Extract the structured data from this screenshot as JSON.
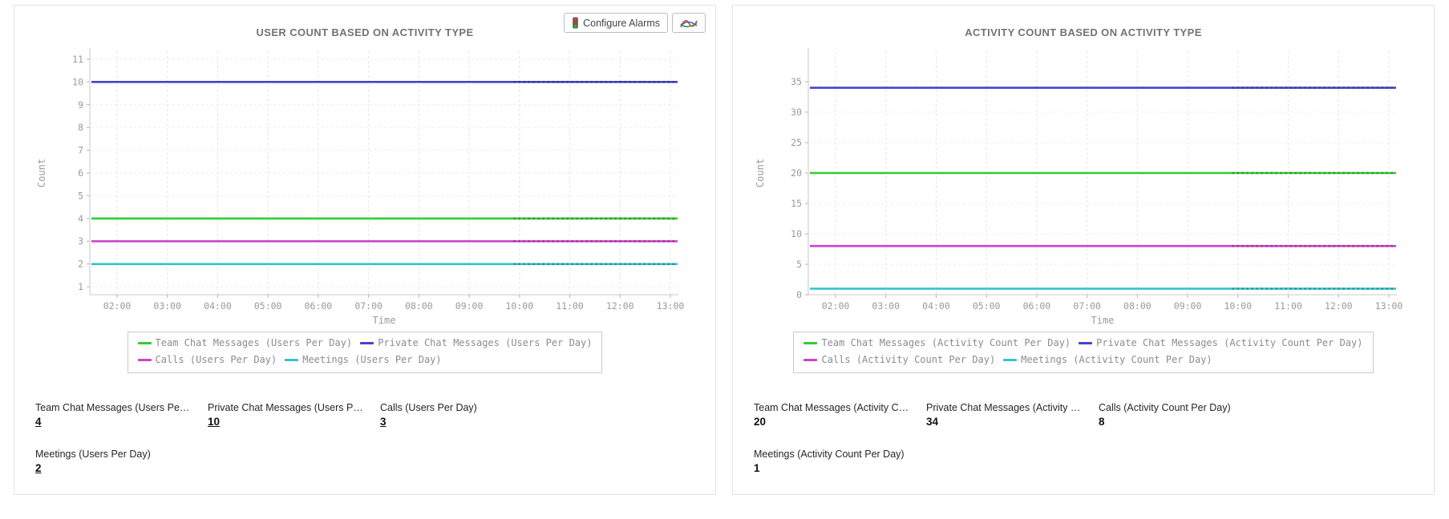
{
  "toolbar": {
    "configure_alarms": "Configure Alarms"
  },
  "chart_data": [
    {
      "type": "line",
      "title": "USER COUNT BASED ON ACTIVITY TYPE",
      "xlabel": "Time",
      "ylabel": "Count",
      "x": [
        "02:00",
        "03:00",
        "04:00",
        "05:00",
        "06:00",
        "07:00",
        "08:00",
        "09:00",
        "10:00",
        "11:00",
        "12:00",
        "13:00"
      ],
      "y_ticks": [
        1,
        2,
        3,
        4,
        5,
        6,
        7,
        8,
        9,
        10,
        11
      ],
      "ylim": [
        0.65,
        11.35
      ],
      "grid": true,
      "legend_position": "bottom",
      "series": [
        {
          "name": "Team Chat Messages (Users Per Day)",
          "color": "#33cc33",
          "values": [
            4,
            4,
            4,
            4,
            4,
            4,
            4,
            4,
            4,
            4,
            4,
            4
          ]
        },
        {
          "name": "Private Chat Messages (Users Per Day)",
          "color": "#4343ce",
          "values": [
            10,
            10,
            10,
            10,
            10,
            10,
            10,
            10,
            10,
            10,
            10,
            10
          ]
        },
        {
          "name": "Calls (Users Per Day)",
          "color": "#cb42cb",
          "values": [
            3,
            3,
            3,
            3,
            3,
            3,
            3,
            3,
            3,
            3,
            3,
            3
          ]
        },
        {
          "name": "Meetings (Users Per Day)",
          "color": "#35c4c8",
          "values": [
            2,
            2,
            2,
            2,
            2,
            2,
            2,
            2,
            2,
            2,
            2,
            2
          ]
        }
      ]
    },
    {
      "type": "line",
      "title": "ACTIVITY COUNT BASED ON ACTIVITY TYPE",
      "xlabel": "Time",
      "ylabel": "Count",
      "x": [
        "02:00",
        "03:00",
        "04:00",
        "05:00",
        "06:00",
        "07:00",
        "08:00",
        "09:00",
        "10:00",
        "11:00",
        "12:00",
        "13:00"
      ],
      "y_ticks": [
        0,
        5,
        10,
        15,
        20,
        25,
        30,
        35
      ],
      "ylim": [
        0,
        40
      ],
      "grid": true,
      "legend_position": "bottom",
      "series": [
        {
          "name": "Team Chat Messages (Activity Count Per Day)",
          "color": "#33cc33",
          "values": [
            20,
            20,
            20,
            20,
            20,
            20,
            20,
            20,
            20,
            20,
            20,
            20
          ]
        },
        {
          "name": "Private Chat Messages (Activity Count Per Day)",
          "color": "#4343ce",
          "values": [
            34,
            34,
            34,
            34,
            34,
            34,
            34,
            34,
            34,
            34,
            34,
            34
          ]
        },
        {
          "name": "Calls (Activity Count Per Day)",
          "color": "#cb42cb",
          "values": [
            8,
            8,
            8,
            8,
            8,
            8,
            8,
            8,
            8,
            8,
            8,
            8
          ]
        },
        {
          "name": "Meetings (Activity Count Per Day)",
          "color": "#35c4c8",
          "values": [
            1,
            1,
            1,
            1,
            1,
            1,
            1,
            1,
            1,
            1,
            1,
            1
          ]
        }
      ]
    }
  ],
  "summary_stats": [
    {
      "items": [
        {
          "label": "Team Chat Messages (Users Pe…",
          "value": "4"
        },
        {
          "label": "Private Chat Messages (Users P…",
          "value": "10"
        },
        {
          "label": "Calls (Users Per Day)",
          "value": "3"
        },
        {
          "label": "Meetings (Users Per Day)",
          "value": "2"
        }
      ]
    },
    {
      "items": [
        {
          "label": "Team Chat Messages (Activity C…",
          "value": "20"
        },
        {
          "label": "Private Chat Messages (Activity …",
          "value": "34"
        },
        {
          "label": "Calls (Activity Count Per Day)",
          "value": "8"
        },
        {
          "label": "Meetings (Activity Count Per Day)",
          "value": "1"
        }
      ]
    }
  ]
}
